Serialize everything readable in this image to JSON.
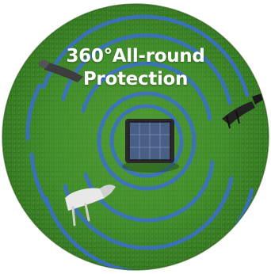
{
  "headline": {
    "line1": "360°All-round",
    "line2": "Protection"
  },
  "colors": {
    "grass": "#3f8a2a",
    "grass_dark": "#2f6e1e",
    "ring": "#3a6fd0",
    "panel": "#4a5f86"
  },
  "icons": {
    "center": "solar-device-icon",
    "pests": [
      "animal-left-icon",
      "animal-right-icon",
      "animal-bottom-icon"
    ]
  }
}
